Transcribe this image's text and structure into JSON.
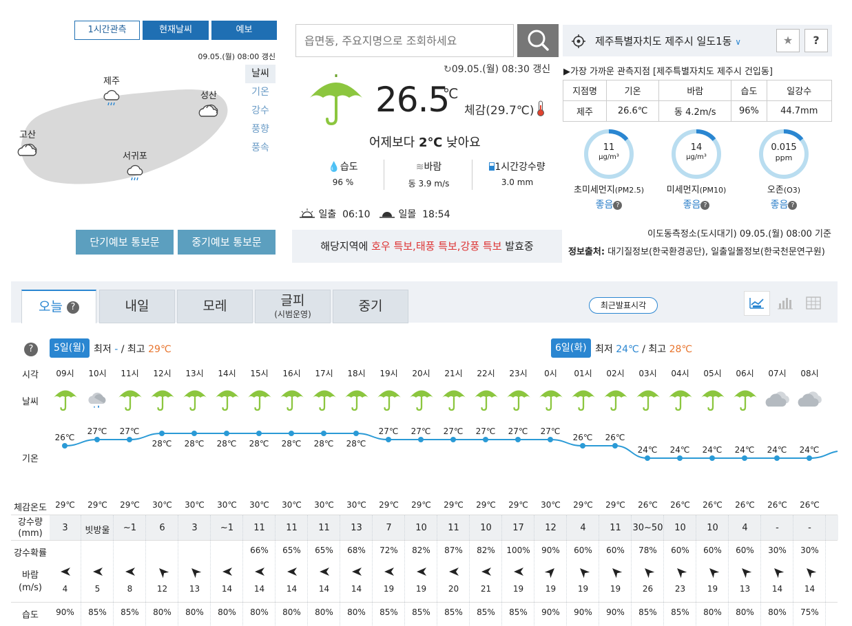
{
  "map": {
    "tabs": [
      "1시간관측",
      "현재날씨",
      "예보"
    ],
    "updated": "09.05.(월) 08:00 갱신",
    "side_items": [
      "날씨",
      "기온",
      "강수",
      "풍향",
      "풍속"
    ],
    "stations": [
      "제주",
      "성산",
      "고산",
      "서귀포"
    ],
    "buttons": [
      "단기예보 통보문",
      "중기예보 통보문"
    ]
  },
  "search": {
    "placeholder": "읍면동, 주요지명으로 조회하세요"
  },
  "current": {
    "updated": "09.05.(월) 08:30 갱신",
    "temp": "26.5",
    "unit": "℃",
    "feels": "체감(29.7℃)",
    "compare_pre": "어제보다 ",
    "compare_val": "2℃",
    "compare_post": " 낮아요",
    "humidity_label": "습도",
    "humidity": "96 %",
    "wind_label": "바람",
    "wind": "동 3.9 m/s",
    "rain_label": "1시간강수량",
    "rain": "3.0 mm",
    "sunrise_label": "일출",
    "sunrise": "06:10",
    "sunset_label": "일몰",
    "sunset": "18:54",
    "alert_pre": "해당지역에 ",
    "alert_red": "호우 특보,태풍 특보,강풍 특보",
    "alert_post": " 발효중"
  },
  "location": {
    "name": "제주특별자치도 제주시 일도1동"
  },
  "obs": {
    "title": "▶가장 가까운 관측지점 [제주특별자치도 제주시 건입동]",
    "headers": [
      "지점명",
      "기온",
      "바람",
      "습도",
      "일강수"
    ],
    "values": [
      "제주",
      "26.6℃",
      "동 4.2m/s",
      "96%",
      "44.7mm"
    ]
  },
  "air": [
    {
      "value": "11",
      "unit": "μg/m³",
      "label": "초미세먼지",
      "sub": "(PM2.5)",
      "grade": "좋음"
    },
    {
      "value": "14",
      "unit": "μg/m³",
      "label": "미세먼지",
      "sub": "(PM10)",
      "grade": "좋음"
    },
    {
      "value": "0.015",
      "unit": "ppm",
      "label": "오존",
      "sub": "(O3)",
      "grade": "좋음"
    }
  ],
  "air_std": "이도동측정소(도시대기) 09.05.(월) 08:00 기준",
  "air_src_label": "정보출처:",
  "air_src": " 대기질정보(한국환경공단), 일출일몰정보(한국천문연구원)",
  "forecast": {
    "tabs": [
      "오늘",
      "내일",
      "모레",
      "글피",
      "중기"
    ],
    "tab_sub": "(시범운영)",
    "recent_btn": "최근발표시각",
    "day1": {
      "badge": "5일(월)",
      "min_label": "최저",
      "min": "-",
      "max_label": "최고",
      "max": "29℃"
    },
    "day2": {
      "badge": "6일(화)",
      "min_label": "최저",
      "min": "24℃",
      "max_label": "최고",
      "max": "28℃"
    },
    "row_labels": [
      "시각",
      "날씨",
      "기온",
      "체감온도",
      "강수량",
      "(mm)",
      "강수확률",
      "바람",
      "(m/s)",
      "습도"
    ],
    "hours": [
      "09시",
      "10시",
      "11시",
      "12시",
      "13시",
      "14시",
      "15시",
      "16시",
      "17시",
      "18시",
      "19시",
      "20시",
      "21시",
      "22시",
      "23시",
      "0시",
      "01시",
      "02시",
      "03시",
      "04시",
      "05시",
      "06시",
      "07시",
      "08시"
    ],
    "weather": [
      "umbrella",
      "cloud-rain",
      "umbrella",
      "umbrella",
      "umbrella",
      "umbrella",
      "umbrella",
      "umbrella",
      "umbrella",
      "umbrella",
      "umbrella",
      "umbrella",
      "umbrella",
      "umbrella",
      "umbrella",
      "umbrella",
      "umbrella",
      "umbrella",
      "umbrella",
      "umbrella",
      "umbrella",
      "umbrella",
      "cloudy",
      "cloudy"
    ],
    "temps": [
      26,
      27,
      27,
      28,
      28,
      28,
      28,
      28,
      28,
      28,
      27,
      27,
      27,
      27,
      27,
      27,
      26,
      26,
      24,
      24,
      24,
      24,
      24,
      24
    ],
    "feels": [
      "29℃",
      "29℃",
      "29℃",
      "30℃",
      "30℃",
      "30℃",
      "30℃",
      "30℃",
      "30℃",
      "30℃",
      "29℃",
      "29℃",
      "29℃",
      "29℃",
      "29℃",
      "30℃",
      "29℃",
      "29℃",
      "26℃",
      "26℃",
      "26℃",
      "26℃",
      "26℃",
      "26℃"
    ],
    "rain": [
      "3",
      "빗방울",
      "~1",
      "6",
      "3",
      "~1",
      "11",
      "11",
      "11",
      "13",
      "7",
      "10",
      "11",
      "10",
      "17",
      "12",
      "4",
      "11",
      "30~50",
      "10",
      "10",
      "4",
      "-",
      "-"
    ],
    "pop": [
      "",
      "",
      "",
      "",
      "",
      "",
      "66%",
      "65%",
      "65%",
      "68%",
      "72%",
      "82%",
      "87%",
      "82%",
      "100%",
      "90%",
      "60%",
      "60%",
      "78%",
      "60%",
      "60%",
      "60%",
      "30%",
      "30%"
    ],
    "wind_speed": [
      "4",
      "5",
      "8",
      "12",
      "13",
      "14",
      "14",
      "14",
      "14",
      "14",
      "19",
      "19",
      "20",
      "21",
      "19",
      "19",
      "19",
      "19",
      "26",
      "23",
      "19",
      "13",
      "14",
      "14"
    ],
    "humidity": [
      "90%",
      "85%",
      "85%",
      "80%",
      "80%",
      "80%",
      "80%",
      "80%",
      "80%",
      "80%",
      "85%",
      "85%",
      "85%",
      "85%",
      "85%",
      "90%",
      "90%",
      "90%",
      "85%",
      "85%",
      "80%",
      "80%",
      "80%",
      "75%"
    ]
  }
}
